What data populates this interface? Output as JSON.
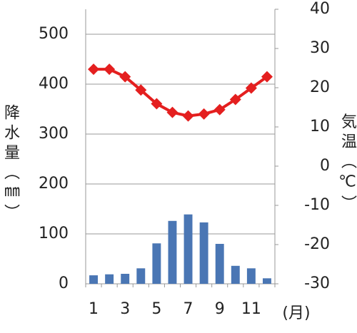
{
  "chart_data": {
    "type": "combo",
    "y_label": "降水量（㎜）",
    "y2_label": "気温（℃）",
    "x_unit_label": "(月)",
    "categories": [
      "1",
      null,
      "3",
      null,
      "5",
      null,
      "7",
      null,
      "9",
      null,
      "11",
      null
    ],
    "series": [
      {
        "type": "bar",
        "color": "#4a76b4",
        "axis": "y",
        "values": [
          17,
          19,
          20,
          31,
          81,
          126,
          139,
          123,
          80,
          36,
          31,
          11
        ]
      },
      {
        "type": "line",
        "color": "#e41f1f",
        "axis": "y2",
        "values": [
          24.7,
          24.7,
          22.8,
          19.4,
          15.9,
          13.7,
          12.8,
          13.3,
          14.4,
          17.0,
          19.9,
          22.8
        ]
      }
    ],
    "ylim": [
      0,
      550
    ],
    "yticks": [
      0,
      100,
      200,
      300,
      400,
      500
    ],
    "y2lim": [
      -30,
      40
    ],
    "y2ticks": [
      -30,
      -20,
      -10,
      0,
      10,
      20,
      30,
      40
    ],
    "grid": true
  }
}
